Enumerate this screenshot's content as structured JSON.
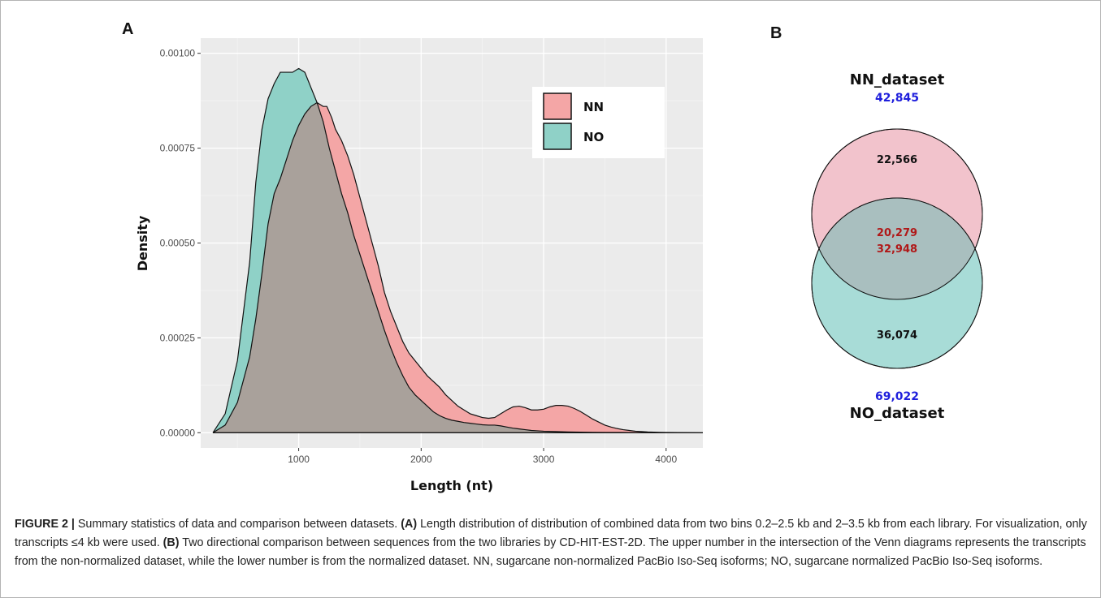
{
  "panels": {
    "a": "A",
    "b": "B"
  },
  "chart_data": [
    {
      "type": "area",
      "title": "",
      "xlabel": "Length (nt)",
      "ylabel": "Density",
      "xlim": [
        200,
        4300
      ],
      "ylim": [
        -4e-05,
        0.00104
      ],
      "xticks": [
        1000,
        2000,
        3000,
        4000
      ],
      "xtick_labels": [
        "1000",
        "2000",
        "3000",
        "4000"
      ],
      "yticks": [
        0,
        0.00025,
        0.0005,
        0.00075,
        0.001
      ],
      "ytick_labels": [
        "0.00000",
        "0.00025",
        "0.00050",
        "0.00075",
        "0.00100"
      ],
      "grid": true,
      "background": "#ebebeb",
      "legend_position": "top-right",
      "series": [
        {
          "name": "NN",
          "color": "#f4a6a6",
          "x": [
            300,
            400,
            500,
            600,
            650,
            700,
            750,
            800,
            850,
            900,
            950,
            1000,
            1050,
            1100,
            1150,
            1200,
            1230,
            1270,
            1300,
            1350,
            1400,
            1450,
            1500,
            1550,
            1600,
            1650,
            1700,
            1750,
            1800,
            1850,
            1900,
            1950,
            2000,
            2050,
            2100,
            2150,
            2200,
            2250,
            2300,
            2350,
            2400,
            2450,
            2500,
            2550,
            2600,
            2650,
            2700,
            2750,
            2800,
            2850,
            2900,
            2950,
            3000,
            3050,
            3100,
            3150,
            3200,
            3250,
            3300,
            3350,
            3400,
            3450,
            3500,
            3550,
            3600,
            3650,
            3700,
            3750,
            3800,
            3850,
            3900,
            3950,
            4000,
            4100,
            4200,
            4300
          ],
          "y": [
            0.0,
            2e-05,
            8e-05,
            0.0002,
            0.0003,
            0.00042,
            0.00055,
            0.00063,
            0.00067,
            0.00072,
            0.00077,
            0.00081,
            0.00084,
            0.00086,
            0.00087,
            0.00086,
            0.00086,
            0.00083,
            0.0008,
            0.00077,
            0.00073,
            0.00068,
            0.00062,
            0.00056,
            0.0005,
            0.00044,
            0.00037,
            0.00032,
            0.00028,
            0.00024,
            0.00021,
            0.00019,
            0.00017,
            0.00015,
            0.000135,
            0.00012,
            0.0001,
            8.5e-05,
            7e-05,
            6e-05,
            5e-05,
            4.5e-05,
            4e-05,
            3.8e-05,
            4e-05,
            5e-05,
            6e-05,
            6.8e-05,
            7e-05,
            6.6e-05,
            6e-05,
            6e-05,
            6.2e-05,
            6.8e-05,
            7.2e-05,
            7.2e-05,
            7e-05,
            6.4e-05,
            5.6e-05,
            4.6e-05,
            3.6e-05,
            2.8e-05,
            2e-05,
            1.5e-05,
            1.1e-05,
            8e-06,
            6e-06,
            4e-06,
            3e-06,
            2e-06,
            1.5e-06,
            1e-06,
            8e-07,
            4e-07,
            2e-07,
            0.0
          ]
        },
        {
          "name": "NO",
          "color": "#8fd1c7",
          "x": [
            300,
            400,
            500,
            600,
            650,
            700,
            750,
            800,
            850,
            900,
            950,
            1000,
            1050,
            1100,
            1150,
            1200,
            1250,
            1300,
            1350,
            1400,
            1450,
            1500,
            1550,
            1600,
            1650,
            1700,
            1750,
            1800,
            1850,
            1900,
            1950,
            2000,
            2050,
            2100,
            2150,
            2200,
            2250,
            2300,
            2350,
            2400,
            2450,
            2500,
            2550,
            2600,
            2650,
            2700,
            2750,
            2800,
            2850,
            2900,
            2950,
            3000,
            3100,
            3200,
            3300,
            3400,
            3500,
            3700,
            4000,
            4300
          ],
          "y": [
            0.0,
            5e-05,
            0.00019,
            0.00045,
            0.00066,
            0.0008,
            0.00088,
            0.00092,
            0.00095,
            0.00095,
            0.00095,
            0.00096,
            0.00095,
            0.00091,
            0.00087,
            0.00082,
            0.00075,
            0.00069,
            0.00063,
            0.00058,
            0.00052,
            0.00047,
            0.00042,
            0.00037,
            0.00032,
            0.00027,
            0.000225,
            0.000185,
            0.00015,
            0.00012,
            0.0001,
            8.5e-05,
            7e-05,
            5.5e-05,
            4.5e-05,
            3.8e-05,
            3.3e-05,
            3e-05,
            2.7e-05,
            2.5e-05,
            2.3e-05,
            2.1e-05,
            2e-05,
            2e-05,
            1.8e-05,
            1.5e-05,
            1.2e-05,
            1e-05,
            8e-06,
            6e-06,
            5e-06,
            4e-06,
            3e-06,
            2e-06,
            1.5e-06,
            1e-06,
            8e-07,
            4e-07,
            2e-07,
            0.0
          ]
        }
      ],
      "overlap_color": "#a9a19b"
    },
    {
      "type": "venn",
      "sets": [
        {
          "name": "NN_dataset",
          "total": "42,845",
          "unique": "22,566",
          "color": "#f2c3cc"
        },
        {
          "name": "NO_dataset",
          "total": "69,022",
          "unique": "36,074",
          "color": "#a8dcd7"
        }
      ],
      "intersection": {
        "upper": "20,279",
        "lower": "32,948",
        "color": "#a9bfbf"
      }
    }
  ],
  "caption": {
    "label": "FIGURE 2 |",
    "intro": " Summary statistics of data and comparison between datasets. ",
    "a_tag": "(A)",
    "a_text": " Length distribution of distribution of combined data from two bins 0.2–2.5 kb and 2–3.5 kb from each library. For visualization, only transcripts ≤4 kb were used. ",
    "b_tag": "(B)",
    "b_text": " Two directional comparison between sequences from the two libraries by CD-HIT-EST-2D. The upper number in the intersection of the Venn diagrams represents the transcripts from the non-normalized dataset, while the lower number is from the normalized dataset. NN, sugarcane non-normalized PacBio Iso-Seq isoforms; NO, sugarcane normalized PacBio Iso-Seq isoforms."
  }
}
